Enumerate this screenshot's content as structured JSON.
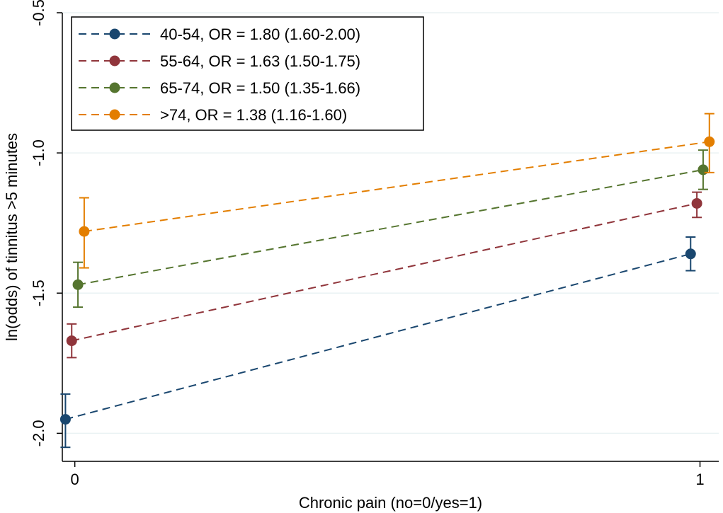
{
  "chart_data": {
    "type": "line",
    "xlabel": "Chronic pain (no=0/yes=1)",
    "ylabel": "ln(odds) of tinnitus >5 minutes",
    "xlim": [
      -0.02,
      1.03
    ],
    "ylim": [
      -2.1,
      -0.5
    ],
    "x_ticks": [
      {
        "value": 0,
        "label": "0"
      },
      {
        "value": 1,
        "label": "1"
      }
    ],
    "y_ticks": [
      {
        "value": -2.0,
        "label": "-2.0"
      },
      {
        "value": -1.5,
        "label": "-1.5"
      },
      {
        "value": -1.0,
        "label": "-1.0"
      },
      {
        "value": -0.5,
        "label": "-0.5"
      }
    ],
    "grid": "horizontal",
    "legend_position": "top-left",
    "series": [
      {
        "name": "40-54, OR = 1.80 (1.60-2.00)",
        "color": "#1a476f",
        "points": [
          {
            "x": -0.015,
            "y": -1.95,
            "lo": -2.05,
            "hi": -1.86
          },
          {
            "x": 0.985,
            "y": -1.36,
            "lo": -1.42,
            "hi": -1.3
          }
        ]
      },
      {
        "name": "55-64, OR = 1.63 (1.50-1.75)",
        "color": "#90353b",
        "points": [
          {
            "x": -0.005,
            "y": -1.67,
            "lo": -1.73,
            "hi": -1.61
          },
          {
            "x": 0.995,
            "y": -1.18,
            "lo": -1.23,
            "hi": -1.14
          }
        ]
      },
      {
        "name": "65-74, OR = 1.50 (1.35-1.66)",
        "color": "#55752f",
        "points": [
          {
            "x": 0.005,
            "y": -1.47,
            "lo": -1.55,
            "hi": -1.39
          },
          {
            "x": 1.005,
            "y": -1.06,
            "lo": -1.13,
            "hi": -0.99
          }
        ]
      },
      {
        "name": ">74, OR = 1.38 (1.16-1.60)",
        "color": "#e37e00",
        "points": [
          {
            "x": 0.015,
            "y": -1.28,
            "lo": -1.41,
            "hi": -1.16
          },
          {
            "x": 1.015,
            "y": -0.96,
            "lo": -1.07,
            "hi": -0.86
          }
        ]
      }
    ]
  }
}
